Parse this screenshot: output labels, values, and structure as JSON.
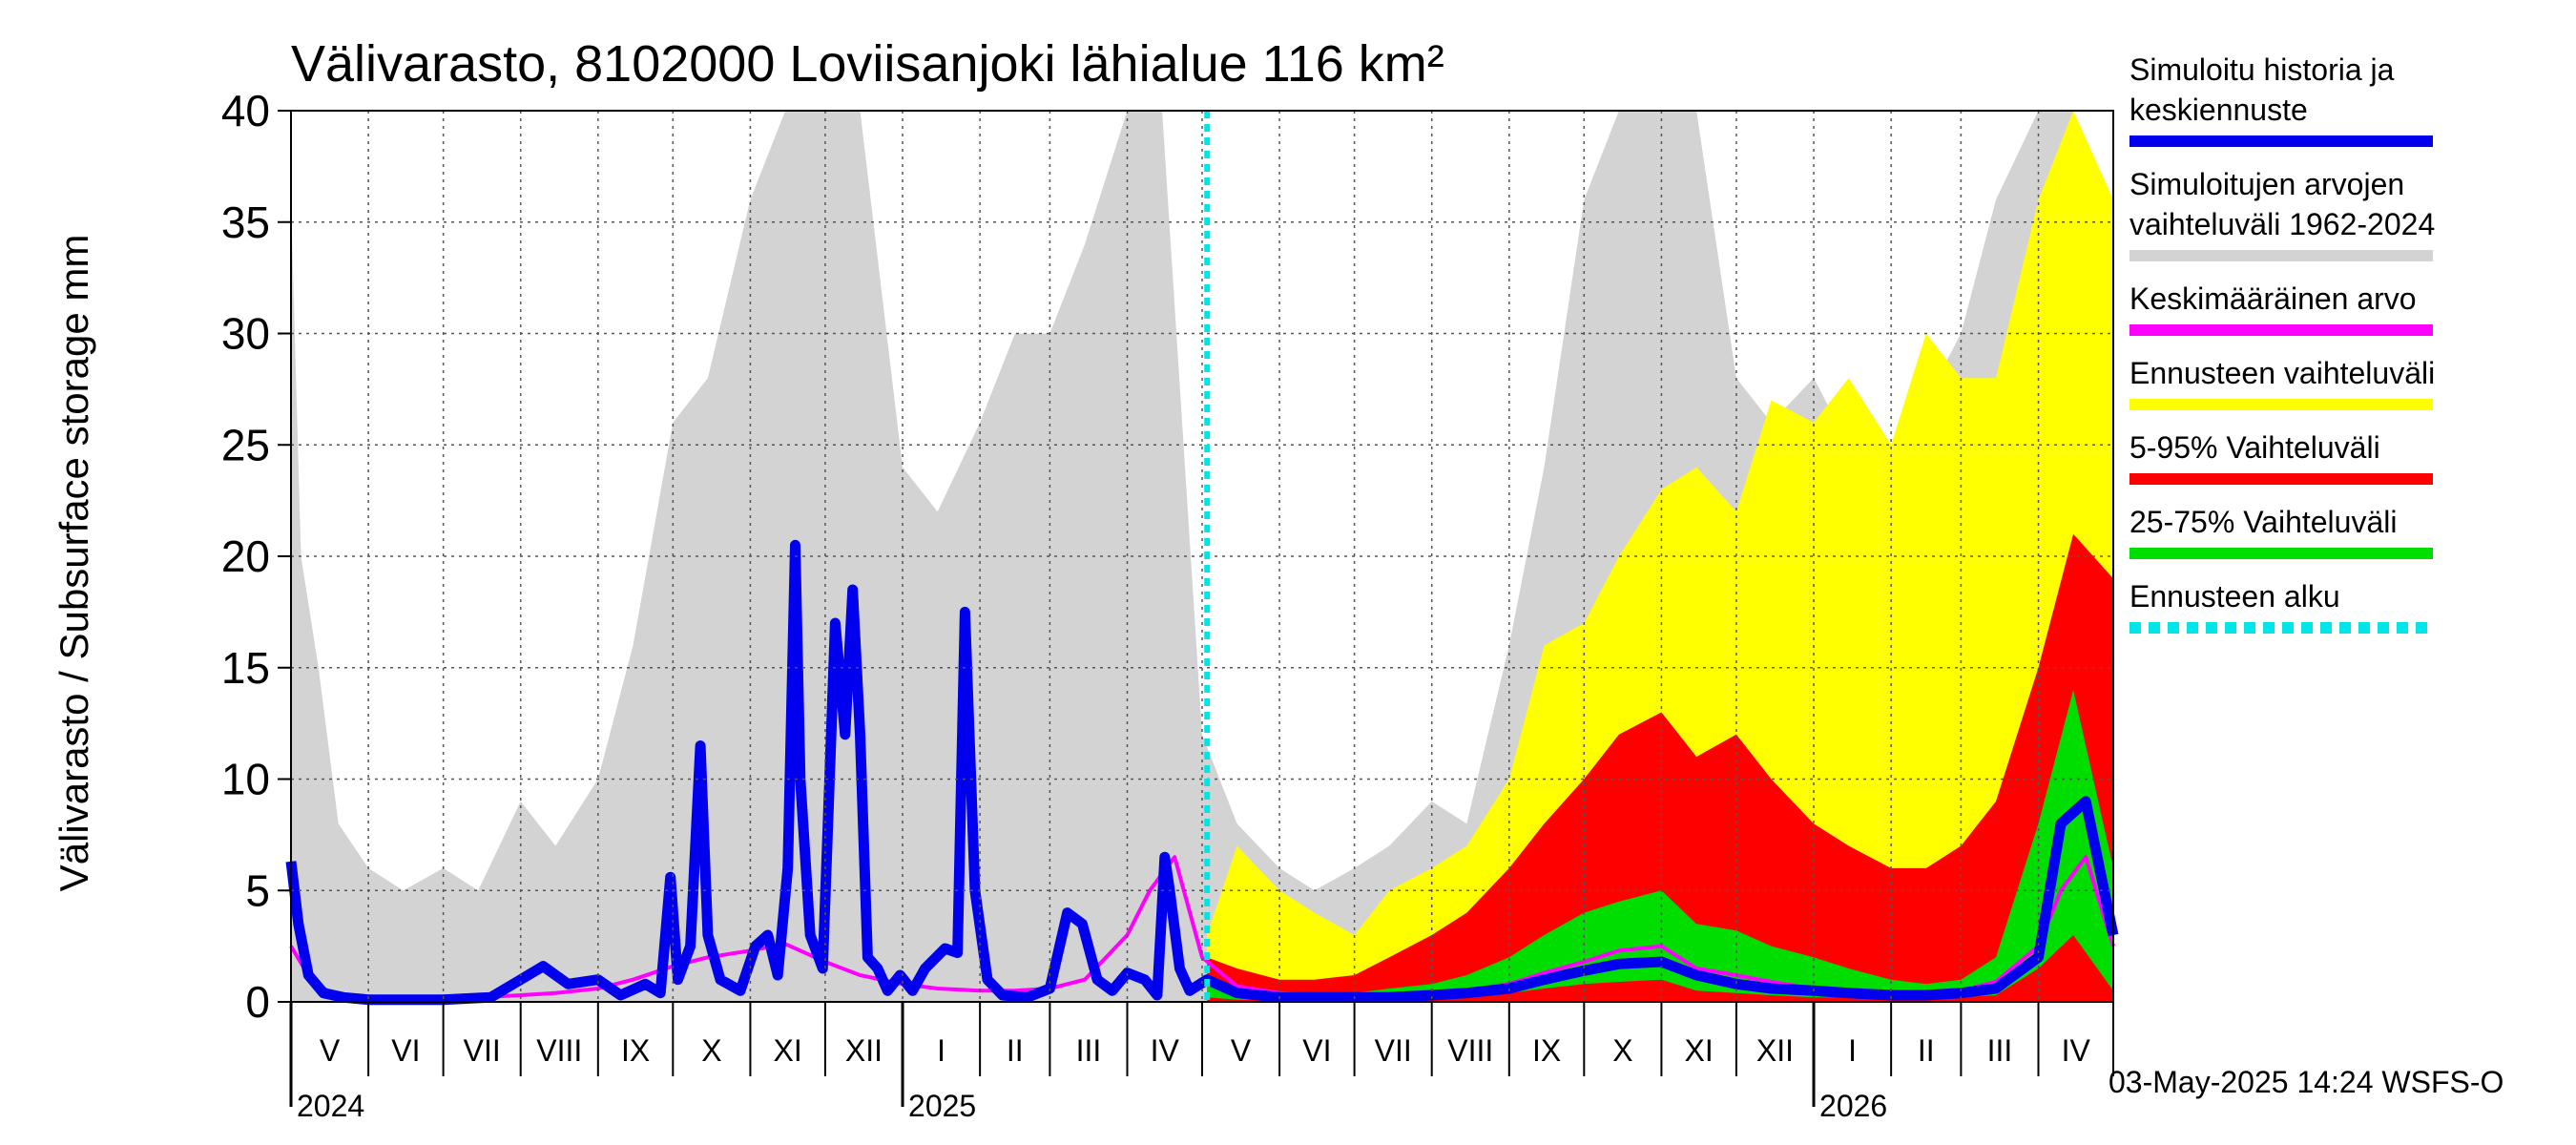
{
  "chart_data": {
    "type": "area",
    "title": "Välivarasto, 8102000 Loviisanjoki lähialue 116 km²",
    "ylabel": "Välivarasto / Subsurface storage  mm",
    "ylim": [
      0,
      40
    ],
    "yticks": [
      "0",
      "5",
      "10",
      "15",
      "20",
      "25",
      "30",
      "35",
      "40"
    ],
    "grid": true,
    "legend_position": "right",
    "x_range": [
      "2024-05-01",
      "2026-05-01"
    ],
    "forecast_start": "2025-05-03",
    "months": [
      {
        "label": "V",
        "start": "2024-05-01"
      },
      {
        "label": "VI",
        "start": "2024-06-01"
      },
      {
        "label": "VII",
        "start": "2024-07-01"
      },
      {
        "label": "VIII",
        "start": "2024-08-01"
      },
      {
        "label": "IX",
        "start": "2024-09-01"
      },
      {
        "label": "X",
        "start": "2024-10-01"
      },
      {
        "label": "XI",
        "start": "2024-11-01"
      },
      {
        "label": "XII",
        "start": "2024-12-01"
      },
      {
        "label": "I",
        "start": "2025-01-01"
      },
      {
        "label": "II",
        "start": "2025-02-01"
      },
      {
        "label": "III",
        "start": "2025-03-01"
      },
      {
        "label": "IV",
        "start": "2025-04-01"
      },
      {
        "label": "V",
        "start": "2025-05-01"
      },
      {
        "label": "VI",
        "start": "2025-06-01"
      },
      {
        "label": "VII",
        "start": "2025-07-01"
      },
      {
        "label": "VIII",
        "start": "2025-08-01"
      },
      {
        "label": "IX",
        "start": "2025-09-01"
      },
      {
        "label": "X",
        "start": "2025-10-01"
      },
      {
        "label": "XI",
        "start": "2025-11-01"
      },
      {
        "label": "XII",
        "start": "2025-12-01"
      },
      {
        "label": "I",
        "start": "2026-01-01"
      },
      {
        "label": "II",
        "start": "2026-02-01"
      },
      {
        "label": "III",
        "start": "2026-03-01"
      },
      {
        "label": "IV",
        "start": "2026-04-01"
      }
    ],
    "years": [
      {
        "label": "2024",
        "date": "2024-05-01"
      },
      {
        "label": "2025",
        "date": "2025-01-01"
      },
      {
        "label": "2026",
        "date": "2026-01-01"
      }
    ],
    "series": [
      {
        "name": "Simuloitujen arvojen vaihteluväli 1962-2024",
        "color": "#d3d3d3",
        "kind": "band",
        "dates": [
          "2024-05-01",
          "2024-05-05",
          "2024-05-12",
          "2024-05-20",
          "2024-06-01",
          "2024-06-15",
          "2024-07-01",
          "2024-07-15",
          "2024-08-01",
          "2024-08-15",
          "2024-09-01",
          "2024-09-15",
          "2024-10-01",
          "2024-10-15",
          "2024-11-01",
          "2024-11-15",
          "2024-12-01",
          "2024-12-15",
          "2025-01-01",
          "2025-01-15",
          "2025-02-01",
          "2025-02-15",
          "2025-03-01",
          "2025-03-15",
          "2025-04-01",
          "2025-04-15",
          "2025-05-01",
          "2025-05-15",
          "2025-06-01",
          "2025-06-15",
          "2025-07-01",
          "2025-07-15",
          "2025-08-01",
          "2025-08-15",
          "2025-09-01",
          "2025-09-15",
          "2025-10-01",
          "2025-10-15",
          "2025-11-01",
          "2025-11-15",
          "2025-12-01",
          "2025-12-15",
          "2026-01-01",
          "2026-01-15",
          "2026-02-01",
          "2026-02-15",
          "2026-03-01",
          "2026-03-15",
          "2026-04-01",
          "2026-04-15",
          "2026-05-01"
        ],
        "upper": [
          36,
          20,
          15,
          8,
          6,
          5,
          6,
          5,
          9,
          7,
          10,
          16,
          26,
          28,
          36,
          40,
          40,
          40,
          24,
          22,
          26,
          30,
          30,
          34,
          40,
          40,
          12,
          8,
          6,
          5,
          6,
          7,
          9,
          8,
          16,
          24,
          36,
          40,
          40,
          40,
          28,
          26,
          28,
          25,
          24,
          27,
          30,
          36,
          40,
          40,
          34
        ],
        "lower": [
          0,
          0,
          0,
          0,
          0,
          0,
          0,
          0,
          0,
          0,
          0,
          0,
          0,
          0,
          0,
          0,
          0,
          0,
          0,
          0,
          0,
          0,
          0,
          0,
          0,
          0,
          0,
          0,
          0,
          0,
          0,
          0,
          0,
          0,
          0,
          0,
          0,
          0,
          0,
          0,
          0,
          0,
          0,
          0,
          0,
          0,
          0,
          0,
          0,
          0,
          0
        ]
      },
      {
        "name": "Ennusteen vaihteluväli",
        "color": "#ffff00",
        "kind": "band",
        "dates": [
          "2025-05-03",
          "2025-05-15",
          "2025-06-01",
          "2025-06-15",
          "2025-07-01",
          "2025-07-15",
          "2025-08-01",
          "2025-08-15",
          "2025-09-01",
          "2025-09-15",
          "2025-10-01",
          "2025-10-15",
          "2025-11-01",
          "2025-11-15",
          "2025-12-01",
          "2025-12-15",
          "2026-01-01",
          "2026-01-15",
          "2026-02-01",
          "2026-02-15",
          "2026-03-01",
          "2026-03-15",
          "2026-04-01",
          "2026-04-15",
          "2026-05-01"
        ],
        "upper": [
          3,
          7,
          5,
          4,
          3,
          5,
          6,
          7,
          10,
          16,
          17,
          20,
          23,
          24,
          22,
          27,
          26,
          28,
          25,
          30,
          28,
          28,
          36,
          40,
          36
        ],
        "lower": [
          0,
          0,
          0,
          0,
          0,
          0,
          0,
          0,
          0,
          0,
          0,
          0,
          0,
          0,
          0,
          0,
          0,
          0,
          0,
          0,
          0,
          0,
          0,
          0,
          0
        ]
      },
      {
        "name": "5-95% Vaihteluväli",
        "color": "#ff0000",
        "kind": "band",
        "dates": [
          "2025-05-03",
          "2025-05-15",
          "2025-06-01",
          "2025-06-15",
          "2025-07-01",
          "2025-07-15",
          "2025-08-01",
          "2025-08-15",
          "2025-09-01",
          "2025-09-15",
          "2025-10-01",
          "2025-10-15",
          "2025-11-01",
          "2025-11-15",
          "2025-12-01",
          "2025-12-15",
          "2026-01-01",
          "2026-01-15",
          "2026-02-01",
          "2026-02-15",
          "2026-03-01",
          "2026-03-15",
          "2026-04-01",
          "2026-04-15",
          "2026-05-01"
        ],
        "upper": [
          2,
          1.5,
          1,
          1,
          1.2,
          2,
          3,
          4,
          6,
          8,
          10,
          12,
          13,
          11,
          12,
          10,
          8,
          7,
          6,
          6,
          7,
          9,
          15,
          21,
          19
        ],
        "lower": [
          0,
          0,
          0,
          0,
          0,
          0,
          0,
          0,
          0,
          0,
          0,
          0,
          0,
          0,
          0,
          0,
          0,
          0,
          0,
          0,
          0,
          0,
          0,
          0,
          0
        ]
      },
      {
        "name": "25-75% Vaihteluväli",
        "color": "#00dd00",
        "kind": "band",
        "dates": [
          "2025-05-03",
          "2025-05-15",
          "2025-06-01",
          "2025-06-15",
          "2025-07-01",
          "2025-07-15",
          "2025-08-01",
          "2025-08-15",
          "2025-09-01",
          "2025-09-15",
          "2025-10-01",
          "2025-10-15",
          "2025-11-01",
          "2025-11-15",
          "2025-12-01",
          "2025-12-15",
          "2026-01-01",
          "2026-01-15",
          "2026-02-01",
          "2026-02-15",
          "2026-03-01",
          "2026-03-15",
          "2026-04-01",
          "2026-04-15",
          "2026-05-01"
        ],
        "upper": [
          1.2,
          0.6,
          0.4,
          0.4,
          0.4,
          0.6,
          0.8,
          1.2,
          2,
          3,
          4,
          4.5,
          5,
          3.5,
          3.2,
          2.5,
          2,
          1.5,
          1,
          0.8,
          1,
          2,
          8,
          14,
          6
        ],
        "lower": [
          0.2,
          0.1,
          0.1,
          0.1,
          0.1,
          0.1,
          0.1,
          0.2,
          0.4,
          0.6,
          0.8,
          0.9,
          1,
          0.5,
          0.4,
          0.3,
          0.2,
          0.2,
          0.1,
          0.1,
          0.2,
          0.3,
          1.5,
          3,
          0.5
        ]
      },
      {
        "name": "Keskimääräinen arvo",
        "color": "#ff00ff",
        "kind": "line",
        "dates": [
          "2024-05-01",
          "2024-05-10",
          "2024-05-20",
          "2024-06-01",
          "2024-06-15",
          "2024-07-01",
          "2024-07-15",
          "2024-08-01",
          "2024-08-15",
          "2024-09-01",
          "2024-09-15",
          "2024-10-01",
          "2024-10-15",
          "2024-11-01",
          "2024-11-15",
          "2024-12-01",
          "2024-12-15",
          "2025-01-01",
          "2025-01-15",
          "2025-02-01",
          "2025-02-15",
          "2025-03-01",
          "2025-03-15",
          "2025-04-01",
          "2025-04-10",
          "2025-04-20",
          "2025-05-01",
          "2025-05-15",
          "2025-06-01",
          "2025-06-15",
          "2025-07-01",
          "2025-07-15",
          "2025-08-01",
          "2025-08-15",
          "2025-09-01",
          "2025-09-15",
          "2025-10-01",
          "2025-10-15",
          "2025-11-01",
          "2025-11-15",
          "2025-12-01",
          "2025-12-15",
          "2026-01-01",
          "2026-01-15",
          "2026-02-01",
          "2026-02-15",
          "2026-03-01",
          "2026-03-15",
          "2026-04-01",
          "2026-04-10",
          "2026-04-20",
          "2026-05-01"
        ],
        "values": [
          2.5,
          0.8,
          0.3,
          0.2,
          0.2,
          0.2,
          0.2,
          0.3,
          0.4,
          0.6,
          1,
          1.6,
          2,
          2.3,
          2.6,
          1.8,
          1.2,
          0.8,
          0.6,
          0.5,
          0.5,
          0.6,
          1,
          3,
          5,
          6.5,
          2,
          0.7,
          0.4,
          0.3,
          0.3,
          0.3,
          0.4,
          0.5,
          0.8,
          1.3,
          1.8,
          2.3,
          2.5,
          1.5,
          1.2,
          0.9,
          0.6,
          0.5,
          0.4,
          0.4,
          0.5,
          0.9,
          2.5,
          5,
          6.5,
          2.5
        ]
      },
      {
        "name": "Simuloitu historia ja keskiennuste",
        "color": "#0000ee",
        "kind": "line",
        "dates": [
          "2024-05-01",
          "2024-05-04",
          "2024-05-08",
          "2024-05-14",
          "2024-05-22",
          "2024-06-01",
          "2024-06-15",
          "2024-07-01",
          "2024-07-20",
          "2024-08-01",
          "2024-08-10",
          "2024-08-20",
          "2024-09-01",
          "2024-09-10",
          "2024-09-20",
          "2024-09-26",
          "2024-09-30",
          "2024-10-03",
          "2024-10-08",
          "2024-10-12",
          "2024-10-15",
          "2024-10-20",
          "2024-10-28",
          "2024-11-03",
          "2024-11-08",
          "2024-11-12",
          "2024-11-16",
          "2024-11-19",
          "2024-11-21",
          "2024-11-25",
          "2024-11-30",
          "2024-12-05",
          "2024-12-09",
          "2024-12-12",
          "2024-12-15",
          "2024-12-18",
          "2024-12-22",
          "2024-12-26",
          "2024-12-31",
          "2025-01-05",
          "2025-01-10",
          "2025-01-18",
          "2025-01-23",
          "2025-01-26",
          "2025-01-30",
          "2025-02-04",
          "2025-02-10",
          "2025-02-20",
          "2025-03-01",
          "2025-03-08",
          "2025-03-14",
          "2025-03-20",
          "2025-03-26",
          "2025-04-01",
          "2025-04-08",
          "2025-04-13",
          "2025-04-16",
          "2025-04-18",
          "2025-04-22",
          "2025-04-26",
          "2025-05-03",
          "2025-05-15",
          "2025-06-01",
          "2025-06-15",
          "2025-07-01",
          "2025-07-15",
          "2025-08-01",
          "2025-08-15",
          "2025-09-01",
          "2025-09-15",
          "2025-10-01",
          "2025-10-15",
          "2025-11-01",
          "2025-11-15",
          "2025-12-01",
          "2025-12-15",
          "2026-01-01",
          "2026-01-15",
          "2026-02-01",
          "2026-02-15",
          "2026-03-01",
          "2026-03-15",
          "2026-04-01",
          "2026-04-10",
          "2026-04-20",
          "2026-05-01"
        ],
        "values": [
          6.3,
          3.5,
          1.2,
          0.4,
          0.2,
          0.1,
          0.1,
          0.1,
          0.2,
          1,
          1.6,
          0.8,
          1,
          0.3,
          0.8,
          0.4,
          5.6,
          1,
          2.5,
          11.5,
          3,
          1,
          0.5,
          2.5,
          3,
          1.2,
          6,
          20.5,
          10,
          3,
          1.5,
          17,
          12,
          18.5,
          12,
          2,
          1.5,
          0.5,
          1.2,
          0.5,
          1.5,
          2.4,
          2.2,
          17.5,
          5,
          1,
          0.3,
          0.2,
          0.6,
          4,
          3.5,
          1,
          0.5,
          1.3,
          1,
          0.3,
          6.5,
          5,
          1.5,
          0.5,
          1,
          0.4,
          0.2,
          0.2,
          0.2,
          0.2,
          0.3,
          0.4,
          0.6,
          1,
          1.4,
          1.7,
          1.8,
          1.2,
          0.8,
          0.6,
          0.5,
          0.4,
          0.3,
          0.3,
          0.4,
          0.6,
          2,
          8,
          9,
          3
        ]
      }
    ],
    "legend": [
      {
        "lines": [
          "Simuloitu historia ja",
          "keskiennuste"
        ],
        "color": "#0000ee",
        "style": "solid"
      },
      {
        "lines": [
          "Simuloitujen arvojen",
          "vaihteluväli 1962-2024"
        ],
        "color": "#d3d3d3",
        "style": "solid"
      },
      {
        "lines": [
          "Keskimääräinen arvo"
        ],
        "color": "#ff00ff",
        "style": "solid"
      },
      {
        "lines": [
          "Ennusteen vaihteluväli"
        ],
        "color": "#ffff00",
        "style": "solid"
      },
      {
        "lines": [
          "5-95% Vaihteluväli"
        ],
        "color": "#ff0000",
        "style": "solid"
      },
      {
        "lines": [
          "25-75% Vaihteluväli"
        ],
        "color": "#00dd00",
        "style": "solid"
      },
      {
        "lines": [
          "Ennusteen alku"
        ],
        "color": "#00e5e5",
        "style": "dashed"
      }
    ],
    "forecast_line_color": "#00e5e5"
  },
  "footer": {
    "timestamp": "03-May-2025 14:24 WSFS-O"
  }
}
